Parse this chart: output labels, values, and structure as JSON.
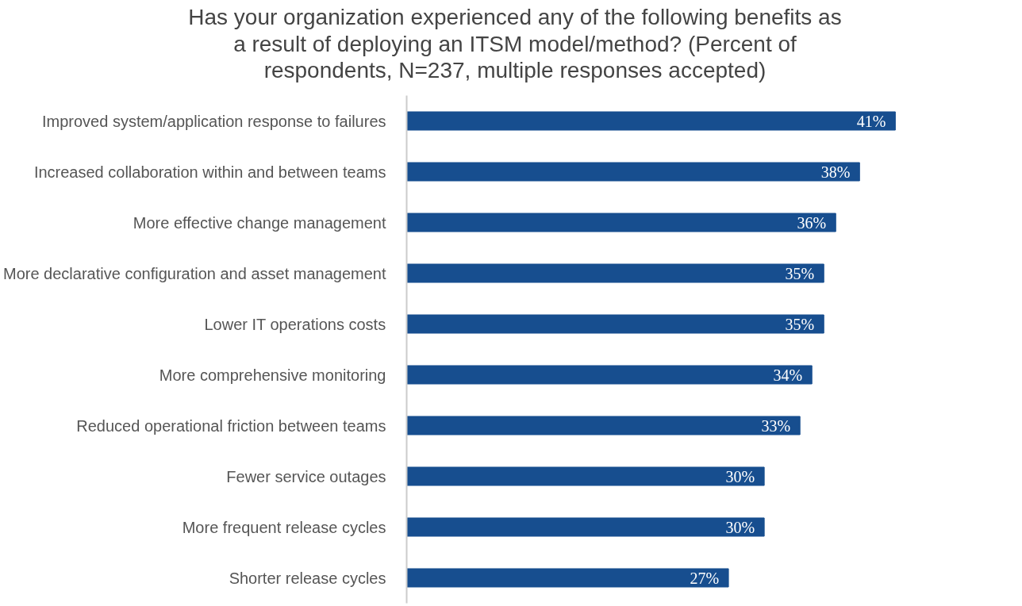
{
  "chart_data": {
    "type": "bar",
    "orientation": "horizontal",
    "title": "Has your organization experienced any of the following benefits as\na result of deploying an ITSM model/method? (Percent of\nrespondents, N=237, multiple responses accepted)",
    "categories": [
      "Improved system/application response to failures",
      "Increased collaboration within and between teams",
      "More effective change management",
      "More declarative configuration and asset management",
      "Lower IT operations costs",
      "More comprehensive monitoring",
      "Reduced operational friction between teams",
      "Fewer service outages",
      "More frequent release cycles",
      "Shorter release cycles"
    ],
    "values": [
      41,
      38,
      36,
      35,
      35,
      34,
      33,
      30,
      30,
      27
    ],
    "value_labels": [
      "41%",
      "38%",
      "36%",
      "35%",
      "35%",
      "34%",
      "33%",
      "30%",
      "30%",
      "27%"
    ],
    "color": "#174e8f",
    "tick_labels": "y",
    "grid": false
  }
}
